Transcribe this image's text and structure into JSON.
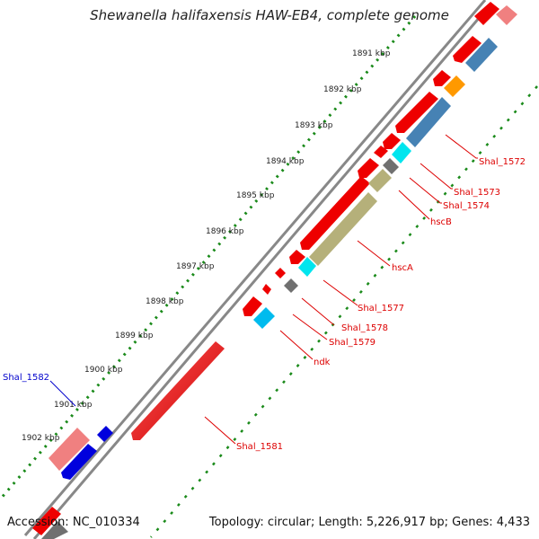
{
  "title": "Shewanella halifaxensis HAW-EB4, complete genome",
  "footer": {
    "accession": "Accession: NC_010334",
    "summary": "Topology: circular; Length: 5,226,917 bp; Genes: 4,433"
  },
  "colors": {
    "gene_red": "#ee0000",
    "gene_pink": "#f08080",
    "gene_blue": "#0000dd",
    "gene_steel": "#4682b4",
    "gene_orange": "#ff9900",
    "gene_cyan": "#00e5ee",
    "gene_gray": "#707070",
    "gene_khaki": "#b5b07a",
    "backbone": "#888888",
    "dots": "#1a8a1a"
  },
  "ticks": [
    {
      "label": "1891 kbp"
    },
    {
      "label": "1892 kbp"
    },
    {
      "label": "1893 kbp"
    },
    {
      "label": "1894 kbp"
    },
    {
      "label": "1895 kbp"
    },
    {
      "label": "1896 kbp"
    },
    {
      "label": "1897 kbp"
    },
    {
      "label": "1898 kbp"
    },
    {
      "label": "1899 kbp"
    },
    {
      "label": "1900 kbp"
    },
    {
      "label": "1901 kbp"
    },
    {
      "label": "1902 kbp"
    }
  ],
  "gene_labels": [
    {
      "name": "Shal_1572",
      "color": "#dd0000"
    },
    {
      "name": "Shal_1573",
      "color": "#dd0000"
    },
    {
      "name": "Shal_1574",
      "color": "#dd0000"
    },
    {
      "name": "hscB",
      "color": "#dd0000"
    },
    {
      "name": "hscA",
      "color": "#dd0000"
    },
    {
      "name": "Shal_1577",
      "color": "#dd0000"
    },
    {
      "name": "Shal_1578",
      "color": "#dd0000"
    },
    {
      "name": "Shal_1579",
      "color": "#dd0000"
    },
    {
      "name": "ndk",
      "color": "#dd0000"
    },
    {
      "name": "Shal_1581",
      "color": "#dd0000"
    },
    {
      "name": "Shal_1582",
      "color": "#0000cc"
    }
  ]
}
